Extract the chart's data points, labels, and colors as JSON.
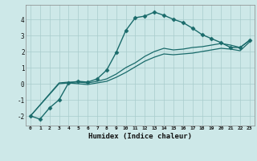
{
  "xlabel": "Humidex (Indice chaleur)",
  "ylabel": "",
  "background_color": "#cde8e8",
  "grid_color": "#a8cccc",
  "line_color": "#1a6b6b",
  "xlim": [
    -0.5,
    23.5
  ],
  "ylim": [
    -2.6,
    4.9
  ],
  "yticks": [
    -2,
    -1,
    0,
    1,
    2,
    3,
    4
  ],
  "xticks": [
    0,
    1,
    2,
    3,
    4,
    5,
    6,
    7,
    8,
    9,
    10,
    11,
    12,
    13,
    14,
    15,
    16,
    17,
    18,
    19,
    20,
    21,
    22,
    23
  ],
  "xtick_labels": [
    "0",
    "1",
    "2",
    "3",
    "4",
    "5",
    "6",
    "7",
    "8",
    "9",
    "10",
    "11",
    "12",
    "13",
    "14",
    "15",
    "16",
    "17",
    "18",
    "19",
    "20",
    "21",
    "22",
    "23"
  ],
  "series": [
    {
      "x": [
        0,
        1,
        2,
        3,
        4,
        5,
        6,
        7,
        8,
        9,
        10,
        11,
        12,
        13,
        14,
        15,
        16,
        17,
        18,
        19,
        20,
        21,
        22,
        23
      ],
      "y": [
        -2.0,
        -2.2,
        -1.5,
        -1.0,
        0.05,
        0.15,
        0.1,
        0.3,
        0.85,
        1.95,
        3.3,
        4.1,
        4.2,
        4.45,
        4.25,
        4.0,
        3.8,
        3.45,
        3.05,
        2.8,
        2.55,
        2.25,
        2.25,
        2.7
      ],
      "marker": "D",
      "markersize": 2.5,
      "linewidth": 1.0,
      "with_markers": true
    },
    {
      "x": [
        0,
        3,
        4,
        5,
        6,
        7,
        8,
        9,
        10,
        11,
        12,
        13,
        14,
        15,
        16,
        17,
        18,
        19,
        20,
        21,
        22,
        23
      ],
      "y": [
        -2.0,
        0.05,
        0.1,
        0.1,
        0.05,
        0.15,
        0.3,
        0.6,
        1.0,
        1.3,
        1.7,
        2.0,
        2.2,
        2.1,
        2.15,
        2.25,
        2.3,
        2.4,
        2.5,
        2.4,
        2.25,
        2.7
      ],
      "marker": null,
      "markersize": 0,
      "linewidth": 0.9,
      "with_markers": false
    },
    {
      "x": [
        0,
        3,
        4,
        5,
        6,
        7,
        8,
        9,
        10,
        11,
        12,
        13,
        14,
        15,
        16,
        17,
        18,
        19,
        20,
        21,
        22,
        23
      ],
      "y": [
        -2.0,
        0.0,
        0.05,
        0.0,
        -0.05,
        0.05,
        0.15,
        0.4,
        0.7,
        1.05,
        1.4,
        1.65,
        1.85,
        1.8,
        1.85,
        1.9,
        2.0,
        2.1,
        2.2,
        2.15,
        2.05,
        2.6
      ],
      "marker": null,
      "markersize": 0,
      "linewidth": 0.9,
      "with_markers": false
    }
  ]
}
